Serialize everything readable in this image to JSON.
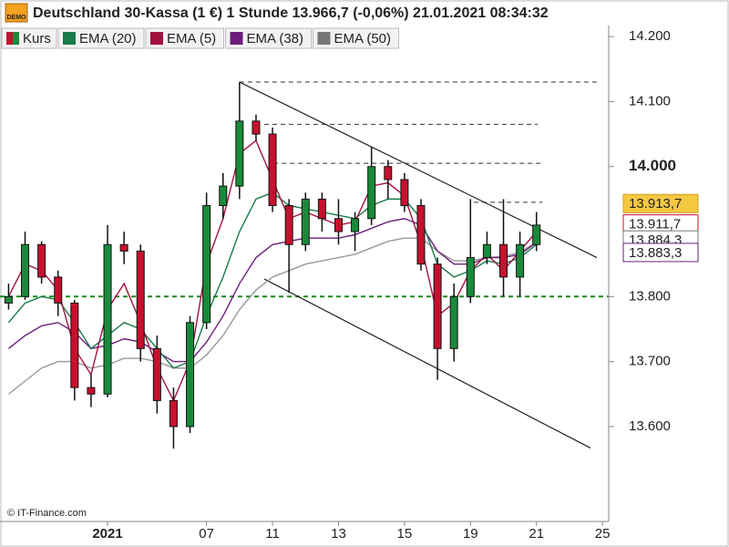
{
  "chart_data": {
    "type": "candlestick",
    "title": "Deutschland 30-Kassa (1 €) 1 Stunde 13.966,7 (-0,06%) 21.01.2021 08:34:32",
    "badge": "DEMO",
    "credit": "© IT-Finance.com",
    "legend": [
      {
        "name": "Kurs",
        "colors": [
          "#c8102e",
          "#1a8a3a"
        ]
      },
      {
        "name": "EMA (20)",
        "color": "#1a7a4a"
      },
      {
        "name": "EMA (5)",
        "color": "#a3123f"
      },
      {
        "name": "EMA (38)",
        "color": "#6b1f7a"
      },
      {
        "name": "EMA (50)",
        "color": "#777777"
      }
    ],
    "xlim": [
      -3.26,
      15.19
    ],
    "ylim": [
      13454,
      14217
    ],
    "xticks": [
      {
        "value": 0,
        "label": "2021"
      },
      {
        "value": 3,
        "label": "07"
      },
      {
        "value": 5,
        "label": "11"
      },
      {
        "value": 7,
        "label": "13"
      },
      {
        "value": 9,
        "label": "15"
      },
      {
        "value": 11,
        "label": "19"
      },
      {
        "value": 13,
        "label": "21"
      },
      {
        "value": 15,
        "label": "25"
      }
    ],
    "yticks": [
      {
        "value": 14200,
        "label": "14.200"
      },
      {
        "value": 14100,
        "label": "14.100"
      },
      {
        "value": 14000,
        "label": "14.000"
      },
      {
        "value": 13800,
        "label": "13.800"
      },
      {
        "value": 13700,
        "label": "13.700"
      },
      {
        "value": 13600,
        "label": "13.600"
      }
    ],
    "bold_ytick": 14000,
    "up_color": "#1a8a3a",
    "down_color": "#c8102e",
    "x": [
      -3.0,
      -2.5,
      -2.0,
      -1.5,
      -1.0,
      -0.5,
      0.0,
      0.5,
      1.0,
      1.5,
      2.0,
      2.5,
      3.0,
      3.5,
      4.0,
      4.5,
      5.0,
      5.5,
      6.0,
      6.5,
      7.0,
      7.5,
      8.0,
      8.5,
      9.0,
      9.5,
      10.0,
      10.5,
      11.0,
      11.5,
      12.0,
      12.5,
      13.0
    ],
    "open": [
      13790,
      13800,
      13880,
      13830,
      13790,
      13660,
      13650,
      13880,
      13870,
      13720,
      13640,
      13600,
      13760,
      13940,
      13970,
      14070,
      14050,
      13940,
      13880,
      13950,
      13920,
      13900,
      13920,
      14000,
      13980,
      13940,
      13850,
      13720,
      13800,
      13860,
      13880,
      13830,
      13880
    ],
    "high": [
      13820,
      13900,
      13885,
      13840,
      13795,
      13680,
      13910,
      13900,
      13880,
      13740,
      13660,
      13770,
      13960,
      13990,
      14130,
      14080,
      14060,
      13950,
      13960,
      13960,
      13950,
      13930,
      14030,
      14010,
      13990,
      13950,
      13860,
      13820,
      13950,
      13900,
      13950,
      13900,
      13930
    ],
    "low": [
      13780,
      13795,
      13820,
      13770,
      13640,
      13630,
      13645,
      13850,
      13700,
      13620,
      13566,
      13590,
      13750,
      13920,
      13950,
      14040,
      13930,
      13806,
      13870,
      13900,
      13880,
      13870,
      13910,
      13950,
      13930,
      13840,
      13672,
      13700,
      13790,
      13850,
      13800,
      13800,
      13870
    ],
    "close": [
      13800,
      13880,
      13830,
      13790,
      13660,
      13650,
      13880,
      13870,
      13720,
      13640,
      13600,
      13760,
      13940,
      13970,
      14070,
      14050,
      13940,
      13880,
      13950,
      13920,
      13900,
      13920,
      14000,
      13980,
      13940,
      13850,
      13720,
      13800,
      13860,
      13880,
      13830,
      13880,
      13910
    ],
    "series": [
      {
        "name": "EMA (50)",
        "color": "#999999",
        "values": [
          13650,
          13670,
          13690,
          13700,
          13700,
          13690,
          13695,
          13705,
          13705,
          13700,
          13690,
          13690,
          13710,
          13740,
          13780,
          13810,
          13830,
          13840,
          13850,
          13855,
          13860,
          13865,
          13875,
          13885,
          13890,
          13890,
          13870,
          13855,
          13855,
          13860,
          13862,
          13868,
          13884
        ]
      },
      {
        "name": "EMA (38)",
        "color": "#6b1f7a",
        "values": [
          13720,
          13740,
          13755,
          13760,
          13745,
          13720,
          13725,
          13735,
          13730,
          13715,
          13700,
          13700,
          13730,
          13770,
          13820,
          13860,
          13880,
          13885,
          13890,
          13890,
          13890,
          13895,
          13905,
          13915,
          13920,
          13910,
          13870,
          13850,
          13850,
          13860,
          13860,
          13865,
          13883
        ]
      },
      {
        "name": "EMA (20)",
        "color": "#1a7a4a",
        "values": [
          13760,
          13790,
          13800,
          13795,
          13760,
          13720,
          13740,
          13760,
          13750,
          13720,
          13690,
          13700,
          13770,
          13830,
          13900,
          13950,
          13960,
          13940,
          13935,
          13930,
          13925,
          13920,
          13940,
          13950,
          13950,
          13920,
          13850,
          13830,
          13840,
          13855,
          13850,
          13860,
          13880
        ]
      },
      {
        "name": "EMA (5)",
        "color": "#a3123f",
        "values": [
          13800,
          13850,
          13840,
          13810,
          13720,
          13680,
          13780,
          13820,
          13760,
          13690,
          13640,
          13700,
          13850,
          13920,
          14020,
          14040,
          13980,
          13920,
          13930,
          13920,
          13910,
          13915,
          13970,
          13975,
          13955,
          13880,
          13770,
          13790,
          13840,
          13865,
          13840,
          13870,
          13900
        ]
      }
    ],
    "levels": [
      {
        "value": 14130,
        "from": 4.0,
        "to": 14.83,
        "color": "#333333"
      },
      {
        "value": 14065,
        "from": 4.75,
        "to": 13.04,
        "color": "#333333"
      },
      {
        "value": 14005,
        "from": 5.03,
        "to": 13.18,
        "color": "#333333"
      },
      {
        "value": 13945,
        "from": 11.1,
        "to": 13.18,
        "color": "#333333"
      },
      {
        "value": 13800,
        "from": -3.26,
        "to": 15.19,
        "color": "#1a8a1a"
      }
    ],
    "trendlines": [
      {
        "x": [
          4.0,
          14.83
        ],
        "y": [
          14130,
          13860
        ]
      },
      {
        "x": [
          4.75,
          14.64
        ],
        "y": [
          13827,
          13567
        ]
      }
    ],
    "price_tags": [
      {
        "value": 13913.7,
        "label": "13.913,7",
        "bg": "#f5c842",
        "fg": "#000000"
      },
      {
        "value": 13911.7,
        "label": "13.911,7",
        "bg": "#ffffff",
        "fg": "#c8102e"
      },
      {
        "value": 13884.3,
        "label": "13.884,3",
        "bg": "#ffffff",
        "fg": "#777777"
      },
      {
        "value": 13883.3,
        "label": "13.883,3",
        "bg": "#ffffff",
        "fg": "#6b1f7a"
      }
    ]
  }
}
